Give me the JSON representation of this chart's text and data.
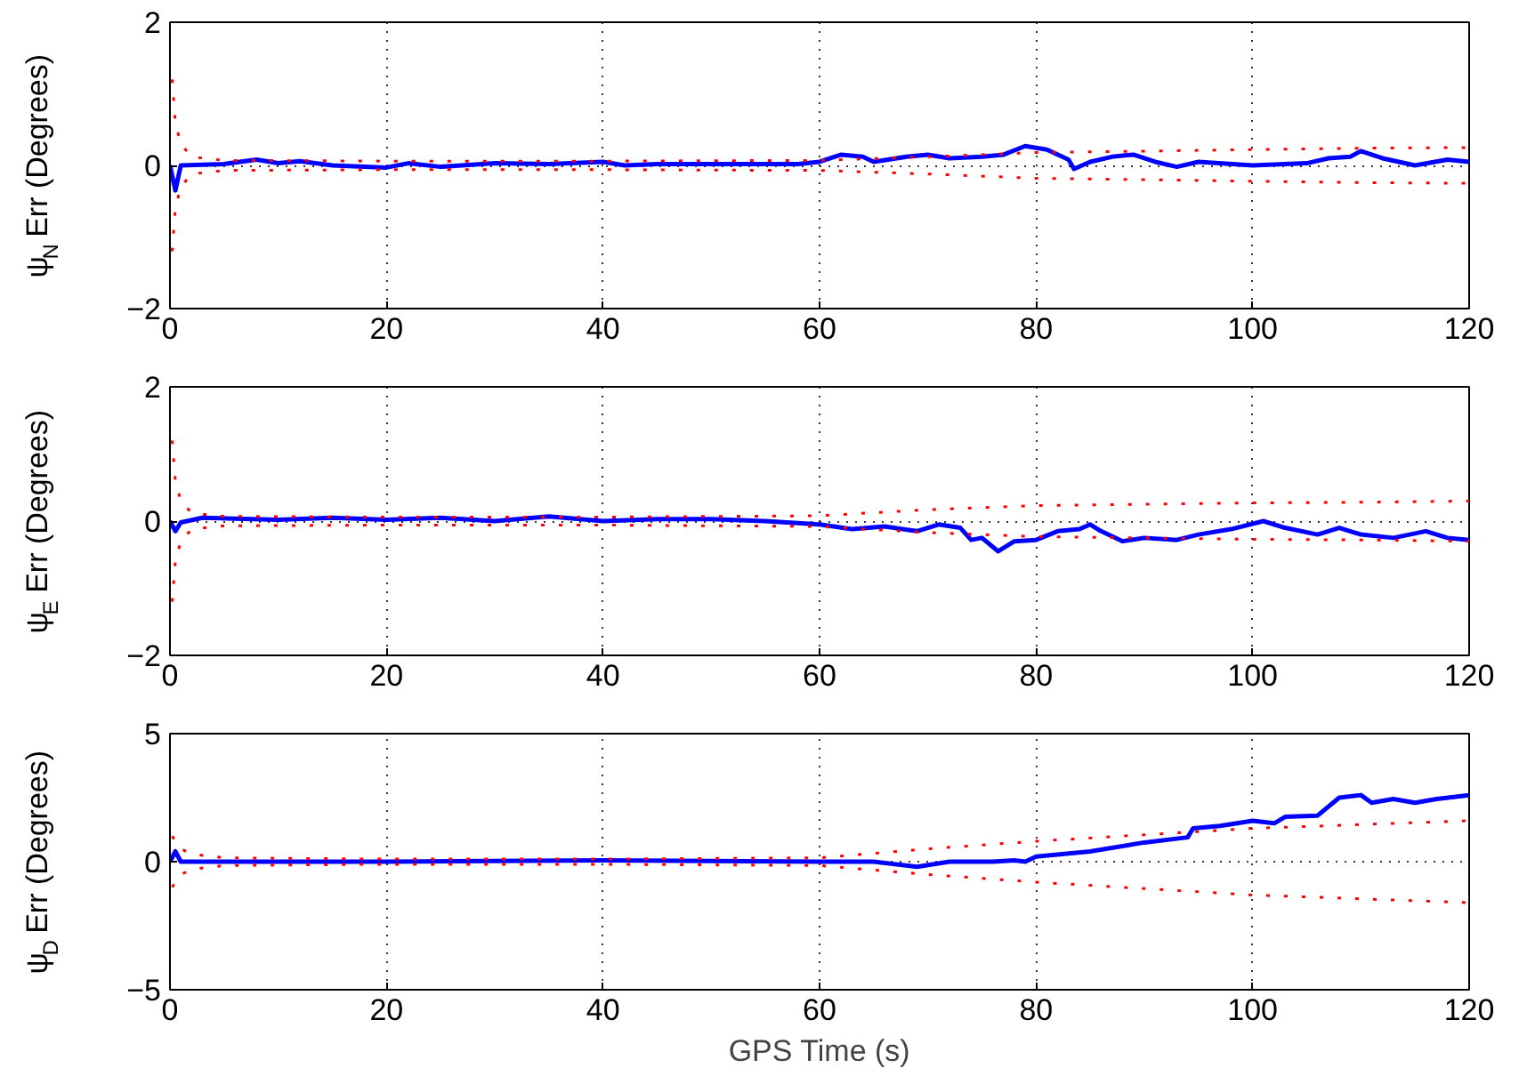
{
  "chart_data": [
    {
      "type": "line",
      "ylabel": "ψ$_{N}$ Err (Degrees)",
      "xlim": [
        0,
        120
      ],
      "ylim": [
        -2,
        2
      ],
      "xticks": [
        0,
        20,
        40,
        60,
        80,
        100,
        120
      ],
      "yticks": [
        -2,
        0,
        2
      ],
      "grid": true,
      "series": [
        {
          "color": "#0000ff",
          "line_style": "solid",
          "x": [
            0,
            0.5,
            1,
            5,
            8,
            10,
            12,
            15,
            20,
            22,
            25,
            30,
            35,
            40,
            42,
            45,
            50,
            55,
            58,
            60,
            62,
            64,
            65,
            68,
            70,
            72,
            75,
            77,
            79,
            81,
            83,
            83.5,
            85,
            87,
            89,
            91,
            93,
            95,
            100,
            105,
            107,
            109,
            110,
            112,
            115,
            118,
            120
          ],
          "values": [
            0,
            -0.35,
            0,
            0.02,
            0.08,
            0.03,
            0.06,
            0,
            -0.03,
            0.03,
            -0.02,
            0.03,
            0.02,
            0.05,
            0,
            0.02,
            0.02,
            0.02,
            0.02,
            0.05,
            0.15,
            0.12,
            0.05,
            0.12,
            0.15,
            0.1,
            0.12,
            0.15,
            0.27,
            0.22,
            0.08,
            -0.05,
            0.05,
            0.12,
            0.15,
            0.05,
            -0.02,
            0.05,
            0,
            0.03,
            0.1,
            0.12,
            0.2,
            0.1,
            0,
            0.08,
            0.05
          ]
        },
        {
          "color": "#ff0000",
          "line_style": "dotted",
          "x": [
            0.2,
            0.5,
            1,
            2,
            5,
            20,
            40,
            60,
            70,
            80,
            90,
            100,
            110,
            120
          ],
          "values": [
            1.2,
            0.6,
            0.3,
            0.12,
            0.07,
            0.06,
            0.06,
            0.07,
            0.12,
            0.18,
            0.2,
            0.22,
            0.24,
            0.25
          ]
        },
        {
          "color": "#ff0000",
          "line_style": "dotted",
          "x": [
            0.2,
            0.5,
            1,
            2,
            5,
            20,
            40,
            60,
            70,
            80,
            90,
            100,
            110,
            120
          ],
          "values": [
            -1.2,
            -0.6,
            -0.3,
            -0.12,
            -0.07,
            -0.06,
            -0.06,
            -0.07,
            -0.12,
            -0.18,
            -0.2,
            -0.22,
            -0.24,
            -0.25
          ]
        }
      ]
    },
    {
      "type": "line",
      "ylabel": "ψ$_{E}$ Err (Degrees)",
      "xlim": [
        0,
        120
      ],
      "ylim": [
        -2,
        2
      ],
      "xticks": [
        0,
        20,
        40,
        60,
        80,
        100,
        120
      ],
      "yticks": [
        -2,
        0,
        2
      ],
      "grid": true,
      "series": [
        {
          "color": "#0000ff",
          "line_style": "solid",
          "x": [
            0,
            0.5,
            1,
            3,
            10,
            15,
            20,
            25,
            30,
            35,
            40,
            45,
            50,
            55,
            60,
            63,
            66,
            69,
            71,
            73,
            74,
            75,
            76.5,
            78,
            80,
            82,
            84,
            85,
            86,
            88,
            90,
            93,
            95,
            98,
            101,
            103,
            106,
            108,
            110,
            113,
            116,
            118,
            120
          ],
          "values": [
            0,
            -0.15,
            -0.02,
            0.05,
            0.02,
            0.05,
            0.02,
            0.05,
            0,
            0.07,
            0,
            0.03,
            0.03,
            0,
            -0.05,
            -0.12,
            -0.08,
            -0.15,
            -0.05,
            -0.1,
            -0.28,
            -0.25,
            -0.45,
            -0.3,
            -0.28,
            -0.15,
            -0.12,
            -0.05,
            -0.15,
            -0.3,
            -0.25,
            -0.28,
            -0.2,
            -0.12,
            0,
            -0.1,
            -0.2,
            -0.1,
            -0.2,
            -0.25,
            -0.15,
            -0.25,
            -0.28
          ]
        },
        {
          "color": "#ff0000",
          "line_style": "dotted",
          "x": [
            0.2,
            0.5,
            1,
            2,
            5,
            20,
            40,
            60,
            70,
            80,
            90,
            100,
            110,
            120
          ],
          "values": [
            1.2,
            0.6,
            0.3,
            0.12,
            0.07,
            0.06,
            0.06,
            0.08,
            0.17,
            0.23,
            0.25,
            0.27,
            0.28,
            0.3
          ]
        },
        {
          "color": "#ff0000",
          "line_style": "dotted",
          "x": [
            0.2,
            0.5,
            1,
            2,
            5,
            20,
            40,
            60,
            70,
            80,
            90,
            100,
            110,
            120
          ],
          "values": [
            -1.2,
            -0.6,
            -0.3,
            -0.12,
            -0.07,
            -0.06,
            -0.06,
            -0.08,
            -0.17,
            -0.23,
            -0.25,
            -0.27,
            -0.28,
            -0.3
          ]
        }
      ]
    },
    {
      "type": "line",
      "xlabel": "GPS Time (s)",
      "ylabel": "ψ$_{D}$ Err (Degrees)",
      "xlim": [
        0,
        120
      ],
      "ylim": [
        -5,
        5
      ],
      "xticks": [
        0,
        20,
        40,
        60,
        80,
        100,
        120
      ],
      "yticks": [
        -5,
        0,
        5
      ],
      "grid": true,
      "series": [
        {
          "color": "#0000ff",
          "line_style": "solid",
          "x": [
            0,
            0.5,
            1,
            20,
            40,
            60,
            65,
            69,
            72,
            76,
            78,
            79,
            80,
            85,
            90,
            94,
            94.5,
            97,
            100,
            102,
            103,
            106,
            108,
            110,
            111,
            113,
            115,
            117,
            120
          ],
          "values": [
            0,
            0.4,
            0,
            0,
            0.05,
            0,
            0,
            -0.2,
            0,
            0,
            0.05,
            0,
            0.2,
            0.4,
            0.75,
            0.95,
            1.3,
            1.4,
            1.6,
            1.5,
            1.75,
            1.8,
            2.5,
            2.6,
            2.3,
            2.45,
            2.3,
            2.45,
            2.6
          ]
        },
        {
          "color": "#ff0000",
          "line_style": "dotted",
          "x": [
            0.2,
            0.5,
            1,
            2,
            5,
            20,
            40,
            60,
            70,
            80,
            90,
            100,
            110,
            120
          ],
          "values": [
            1.0,
            0.8,
            0.5,
            0.3,
            0.15,
            0.1,
            0.1,
            0.15,
            0.5,
            0.8,
            1.05,
            1.3,
            1.45,
            1.6
          ]
        },
        {
          "color": "#ff0000",
          "line_style": "dotted",
          "x": [
            0.2,
            0.5,
            1,
            2,
            5,
            20,
            40,
            60,
            70,
            80,
            90,
            100,
            110,
            120
          ],
          "values": [
            -1.0,
            -0.8,
            -0.5,
            -0.3,
            -0.15,
            -0.1,
            -0.1,
            -0.15,
            -0.5,
            -0.8,
            -1.05,
            -1.3,
            -1.45,
            -1.6
          ]
        }
      ]
    }
  ]
}
